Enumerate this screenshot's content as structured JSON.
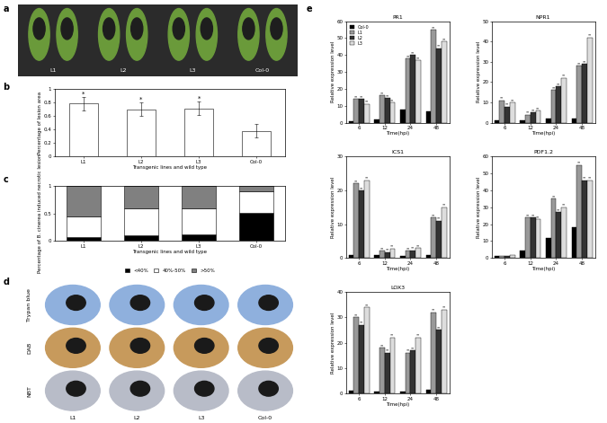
{
  "photo_panels": [
    {
      "panel": "a",
      "labels": [
        "L1",
        "L2",
        "L3",
        "Col-0"
      ]
    },
    {
      "panel": "d",
      "rows": [
        "Trypan blue",
        "DAB",
        "NBT"
      ],
      "columns": [
        "L1",
        "L2",
        "L3",
        "Col-0"
      ]
    }
  ],
  "chart_data": [
    {
      "panel": "b",
      "type": "bar",
      "categories": [
        "L1",
        "L2",
        "L3",
        "Col-0"
      ],
      "values": [
        0.78,
        0.7,
        0.71,
        0.38
      ],
      "errors": [
        0.1,
        0.1,
        0.1,
        0.1
      ],
      "annotations": [
        "*",
        "*",
        "*",
        null
      ],
      "color": "#ffffff",
      "x_label": "Transgenic lines and wild type",
      "y_label": "Percentage of lesion area",
      "ylim": [
        0,
        1
      ],
      "yticks": [
        0,
        0.2,
        0.4,
        0.6,
        0.8,
        1
      ]
    },
    {
      "panel": "c",
      "type": "bar",
      "stacked": true,
      "categories": [
        "L1",
        "L2",
        "L3",
        "Col-0"
      ],
      "series": [
        {
          "name": "<40%",
          "color": "#000000",
          "values": [
            0.08,
            0.1,
            0.12,
            0.52
          ]
        },
        {
          "name": "40%-50%",
          "color": "#ffffff",
          "values": [
            0.37,
            0.5,
            0.48,
            0.38
          ]
        },
        {
          "name": ">50%",
          "color": "#808080",
          "values": [
            0.55,
            0.4,
            0.4,
            0.1
          ]
        }
      ],
      "x_label": "Transgenic lines and wild type",
      "y_label": "Percentage of B. cinerea induced necrotic lesion",
      "legend": "upper center",
      "ylim": [
        0,
        1
      ],
      "yticks": [
        0,
        0.5,
        1
      ]
    },
    {
      "panel": "e",
      "type": "bar",
      "title": "PR1",
      "categories": [
        "6",
        "12",
        "24",
        "48"
      ],
      "x_label": "Time(hpi)",
      "y_label": "Relative expression level",
      "legend": "upper left",
      "ylim": [
        0,
        60
      ],
      "yticks": [
        0,
        10,
        20,
        30,
        40,
        50,
        60
      ],
      "series": [
        {
          "name": "Col-0",
          "color": "#000000",
          "values": [
            1,
            2,
            8,
            6.5
          ],
          "annotations": [
            null,
            null,
            null,
            null
          ]
        },
        {
          "name": "L1",
          "color": "#999999",
          "values": [
            14,
            16,
            38,
            55
          ],
          "annotations": [
            "**",
            "**",
            "**",
            "**"
          ]
        },
        {
          "name": "L2",
          "color": "#333333",
          "values": [
            14,
            14.5,
            40,
            44
          ],
          "annotations": [
            "**",
            "**",
            "**",
            "**"
          ]
        },
        {
          "name": "L3",
          "color": "#dddddd",
          "values": [
            11,
            12,
            37,
            48
          ],
          "annotations": [
            "**",
            "**",
            "**",
            "**"
          ]
        }
      ]
    },
    {
      "type": "bar",
      "title": "NPR1",
      "categories": [
        "6",
        "12",
        "24",
        "48"
      ],
      "x_label": "Time(hpi)",
      "y_label": "Relative expression level",
      "ylim": [
        0,
        50
      ],
      "yticks": [
        0,
        10,
        20,
        30,
        40,
        50
      ],
      "series": [
        {
          "name": "Col-0",
          "color": "#000000",
          "values": [
            1,
            1,
            2,
            2
          ],
          "annotations": [
            null,
            null,
            null,
            null
          ]
        },
        {
          "name": "L1",
          "color": "#999999",
          "values": [
            11,
            4,
            16,
            28
          ],
          "annotations": [
            "**",
            "**",
            "**",
            "**"
          ]
        },
        {
          "name": "L2",
          "color": "#333333",
          "values": [
            8,
            5,
            18,
            29
          ],
          "annotations": [
            "**",
            "**",
            "**",
            "**"
          ]
        },
        {
          "name": "L3",
          "color": "#dddddd",
          "values": [
            10,
            6,
            22,
            42
          ],
          "annotations": [
            "**",
            "**",
            "**",
            "**"
          ]
        }
      ]
    },
    {
      "type": "bar",
      "title": "ICS1",
      "categories": [
        "6",
        "12",
        "24",
        "48"
      ],
      "x_label": "Time(hpi)",
      "y_label": "Relative expression level",
      "ylim": [
        0,
        30
      ],
      "yticks": [
        0,
        10,
        20,
        30
      ],
      "series": [
        {
          "name": "Col-0",
          "color": "#000000",
          "values": [
            1,
            0.8,
            0.7,
            0.9
          ],
          "annotations": [
            null,
            null,
            null,
            null
          ]
        },
        {
          "name": "L1",
          "color": "#999999",
          "values": [
            22,
            2.2,
            2.2,
            12
          ],
          "annotations": [
            "**",
            "**",
            "**",
            "**"
          ]
        },
        {
          "name": "L2",
          "color": "#333333",
          "values": [
            20,
            1.8,
            2.3,
            11
          ],
          "annotations": [
            "**",
            "**",
            "**",
            "**"
          ]
        },
        {
          "name": "L3",
          "color": "#dddddd",
          "values": [
            23,
            2.8,
            3,
            15
          ],
          "annotations": [
            "**",
            "**",
            "**",
            "**"
          ]
        }
      ]
    },
    {
      "type": "bar",
      "title": "PDF1.2",
      "categories": [
        "6",
        "12",
        "24",
        "48"
      ],
      "x_label": "Time(hpi)",
      "y_label": "Relative expression level",
      "ylim": [
        0,
        60
      ],
      "yticks": [
        0,
        10,
        20,
        30,
        40,
        50,
        60
      ],
      "series": [
        {
          "name": "Col-0",
          "color": "#000000",
          "values": [
            1,
            4.2,
            12,
            18
          ],
          "annotations": [
            null,
            null,
            null,
            null
          ]
        },
        {
          "name": "L1",
          "color": "#999999",
          "values": [
            1.2,
            24,
            35,
            55
          ],
          "annotations": [
            null,
            "**",
            "**",
            "**"
          ]
        },
        {
          "name": "L2",
          "color": "#333333",
          "values": [
            1.4,
            24,
            27,
            46
          ],
          "annotations": [
            null,
            "**",
            "**",
            "**"
          ]
        },
        {
          "name": "L3",
          "color": "#dddddd",
          "values": [
            2,
            23,
            30,
            46
          ],
          "annotations": [
            null,
            "**",
            "**",
            "**"
          ]
        }
      ]
    },
    {
      "type": "bar",
      "title": "LOX3",
      "categories": [
        "6",
        "12",
        "24",
        "48"
      ],
      "x_label": "Time(hpi)",
      "y_label": "Relative expression level",
      "ylim": [
        0,
        40
      ],
      "yticks": [
        0,
        10,
        20,
        30,
        40
      ],
      "series": [
        {
          "name": "Col-0",
          "color": "#000000",
          "values": [
            1,
            0.8,
            0.7,
            1.5
          ],
          "annotations": [
            null,
            null,
            null,
            null
          ]
        },
        {
          "name": "L1",
          "color": "#999999",
          "values": [
            30,
            18,
            16,
            32
          ],
          "annotations": [
            "**",
            "**",
            "**",
            "**"
          ]
        },
        {
          "name": "L2",
          "color": "#333333",
          "values": [
            27,
            16,
            17,
            25
          ],
          "annotations": [
            "**",
            "**",
            "**",
            "**"
          ]
        },
        {
          "name": "L3",
          "color": "#dddddd",
          "values": [
            34,
            22,
            22,
            33
          ],
          "annotations": [
            "**",
            "**",
            "**",
            "**"
          ]
        }
      ]
    }
  ]
}
